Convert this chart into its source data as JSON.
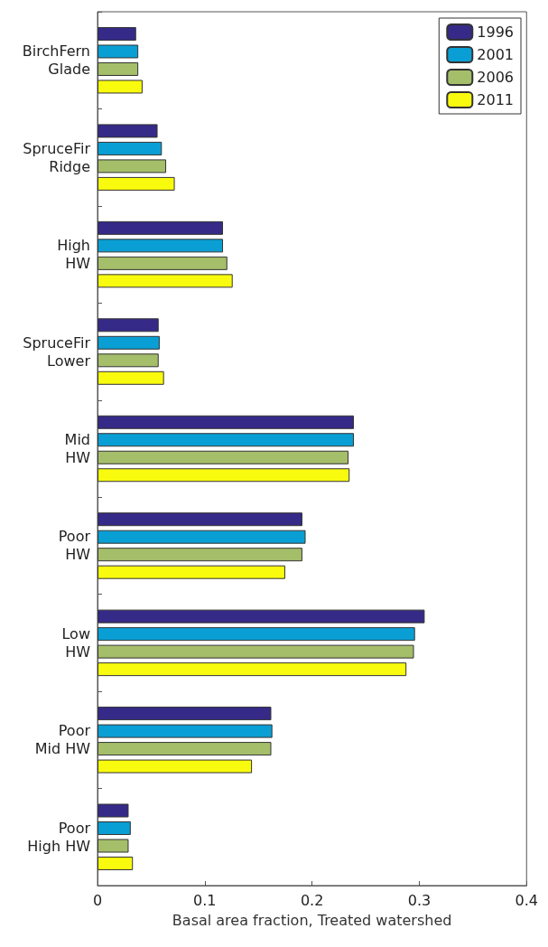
{
  "chart_data": {
    "type": "bar",
    "orientation": "horizontal",
    "xlabel": "Basal area fraction, Treated watershed",
    "categories": [
      "BirchFern\nGlade",
      "SpruceFir\nRidge",
      "High\nHW",
      "SpruceFir\nLower",
      "Mid\nHW",
      "Poor\nHW",
      "Low\nHW",
      "Poor\nMid HW",
      "Poor\nHigh HW"
    ],
    "series": [
      {
        "name": "1996",
        "color": "#352a87",
        "values": [
          0.036,
          0.056,
          0.117,
          0.057,
          0.239,
          0.191,
          0.305,
          0.162,
          0.029
        ]
      },
      {
        "name": "2001",
        "color": "#0a9fd4",
        "values": [
          0.038,
          0.06,
          0.117,
          0.058,
          0.239,
          0.194,
          0.296,
          0.163,
          0.031
        ]
      },
      {
        "name": "2006",
        "color": "#a5be6a",
        "values": [
          0.038,
          0.064,
          0.121,
          0.057,
          0.234,
          0.191,
          0.295,
          0.162,
          0.029
        ]
      },
      {
        "name": "2011",
        "color": "#f9fb0e",
        "values": [
          0.042,
          0.072,
          0.126,
          0.062,
          0.235,
          0.175,
          0.288,
          0.144,
          0.033
        ]
      }
    ],
    "xlim": [
      0,
      0.4
    ],
    "xticks": [
      0,
      0.1,
      0.2,
      0.3,
      0.4
    ],
    "legend": "top right",
    "grid": false
  }
}
